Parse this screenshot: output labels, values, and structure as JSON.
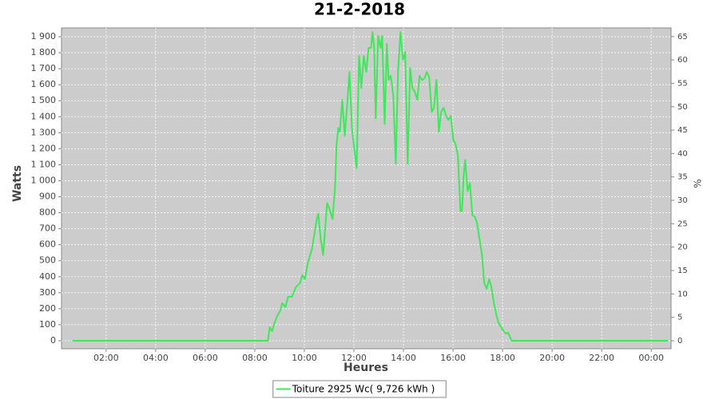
{
  "chart_data": {
    "type": "line",
    "title": "21-2-2018",
    "x_label": "Heures",
    "y_label": "Watts",
    "y2_label": "%",
    "x": [
      0.64,
      8.21,
      8.53,
      8.6,
      8.7,
      8.79,
      8.92,
      9.02,
      9.11,
      9.24,
      9.34,
      9.5,
      9.66,
      9.82,
      9.92,
      10.02,
      10.14,
      10.31,
      10.4,
      10.5,
      10.56,
      10.66,
      10.76,
      10.82,
      10.92,
      11.01,
      11.14,
      11.24,
      11.3,
      11.37,
      11.43,
      11.53,
      11.63,
      11.72,
      11.82,
      11.92,
      12.01,
      12.11,
      12.21,
      12.3,
      12.4,
      12.5,
      12.59,
      12.69,
      12.75,
      12.82,
      12.88,
      12.98,
      13.08,
      13.14,
      13.24,
      13.33,
      13.4,
      13.49,
      13.59,
      13.69,
      13.78,
      13.88,
      13.98,
      14.07,
      14.17,
      14.27,
      14.36,
      14.46,
      14.56,
      14.65,
      14.75,
      14.85,
      14.94,
      15.04,
      15.14,
      15.23,
      15.33,
      15.43,
      15.52,
      15.62,
      15.72,
      15.81,
      15.91,
      16.01,
      16.1,
      16.2,
      16.3,
      16.36,
      16.43,
      16.49,
      16.59,
      16.68,
      16.78,
      16.88,
      16.97,
      17.07,
      17.17,
      17.26,
      17.36,
      17.46,
      17.55,
      17.65,
      17.75,
      17.84,
      17.94,
      18.04,
      18.13,
      18.23,
      18.36,
      24.67
    ],
    "series": [
      {
        "name": "Toiture 2925 Wc( 9,726 kWh )",
        "color": "#3ee85a",
        "values": [
          0,
          0,
          0,
          85,
          60,
          110,
          160,
          185,
          235,
          210,
          275,
          275,
          335,
          360,
          410,
          385,
          485,
          575,
          660,
          760,
          795,
          635,
          535,
          660,
          860,
          825,
          760,
          960,
          1230,
          1330,
          1305,
          1505,
          1280,
          1455,
          1680,
          1330,
          1205,
          1080,
          1780,
          1580,
          1780,
          1680,
          1830,
          1830,
          1930,
          1830,
          1390,
          1905,
          1830,
          1905,
          1355,
          1855,
          1630,
          1655,
          1530,
          1105,
          1680,
          1930,
          1755,
          1805,
          1105,
          1705,
          1580,
          1555,
          1505,
          1655,
          1630,
          1640,
          1680,
          1645,
          1430,
          1455,
          1630,
          1305,
          1430,
          1455,
          1405,
          1380,
          1405,
          1255,
          1230,
          1155,
          810,
          810,
          1030,
          1130,
          935,
          985,
          785,
          775,
          735,
          635,
          535,
          360,
          325,
          385,
          335,
          235,
          160,
          110,
          85,
          60,
          45,
          50,
          0,
          0
        ]
      }
    ],
    "xlim": [
      0.2,
      24.8
    ],
    "xticks": [
      {
        "value": 2,
        "label": "02:00"
      },
      {
        "value": 4,
        "label": "04:00"
      },
      {
        "value": 6,
        "label": "06:00"
      },
      {
        "value": 8,
        "label": "08:00"
      },
      {
        "value": 10,
        "label": "10:00"
      },
      {
        "value": 12,
        "label": "12:00"
      },
      {
        "value": 14,
        "label": "14:00"
      },
      {
        "value": 16,
        "label": "16:00"
      },
      {
        "value": 18,
        "label": "18:00"
      },
      {
        "value": 20,
        "label": "20:00"
      },
      {
        "value": 22,
        "label": "22:00"
      },
      {
        "value": 24,
        "label": "00:00"
      }
    ],
    "ylim": [
      -50,
      1955
    ],
    "yticks": [
      0,
      100,
      200,
      300,
      400,
      500,
      600,
      700,
      800,
      900,
      {
        "value": 1000,
        "label": "1 000"
      },
      {
        "value": 1100,
        "label": "1 100"
      },
      {
        "value": 1200,
        "label": "1 200"
      },
      {
        "value": 1300,
        "label": "1 300"
      },
      {
        "value": 1400,
        "label": "1 400"
      },
      {
        "value": 1500,
        "label": "1 500"
      },
      {
        "value": 1600,
        "label": "1 600"
      },
      {
        "value": 1700,
        "label": "1 700"
      },
      {
        "value": 1800,
        "label": "1 800"
      },
      {
        "value": 1900,
        "label": "1 900"
      }
    ],
    "y2lim": [
      -1.71,
      66.84
    ],
    "y2ticks": [
      0,
      5,
      10,
      15,
      20,
      25,
      30,
      35,
      40,
      45,
      50,
      55,
      60,
      65
    ],
    "grid": true,
    "legend": "bottom"
  }
}
